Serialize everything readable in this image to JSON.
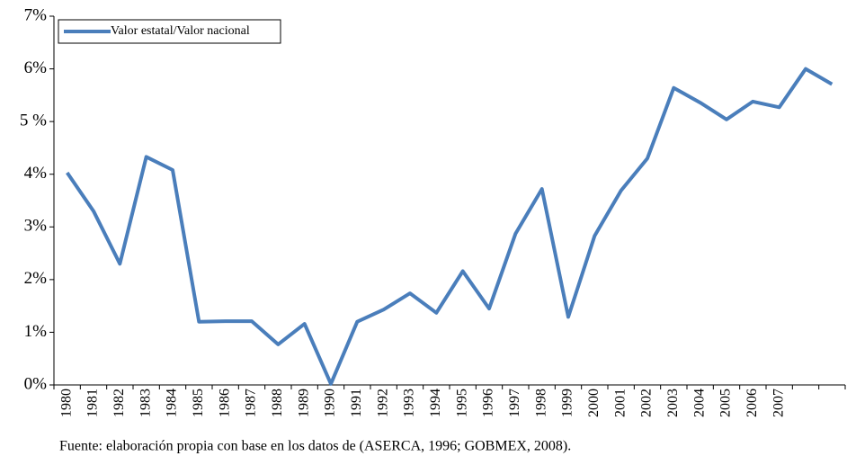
{
  "chart_data": {
    "type": "line",
    "categories": [
      "1980",
      "1981",
      "1982",
      "1983",
      "1984",
      "1985",
      "1986",
      "1987",
      "1988",
      "1989",
      "1990",
      "1991",
      "1992",
      "1993",
      "1994",
      "1995",
      "1996",
      "1997",
      "1998",
      "1999",
      "2000",
      "2001",
      "2002",
      "2003",
      "2004",
      "2005",
      "2006",
      "2007",
      null,
      null
    ],
    "series": [
      {
        "name": "Valor estatal/Valor nacional",
        "color": "#4a7ebb",
        "values": [
          4.03,
          3.3,
          2.3,
          4.33,
          4.08,
          1.2,
          1.21,
          1.21,
          0.77,
          1.16,
          0.02,
          1.2,
          1.43,
          1.74,
          1.37,
          2.16,
          1.45,
          2.87,
          3.72,
          1.29,
          2.83,
          3.69,
          4.3,
          5.64,
          5.36,
          5.04,
          5.38,
          5.27,
          6.0,
          5.71
        ]
      }
    ],
    "ylim": [
      0,
      7
    ],
    "yticks": [
      {
        "value": 0,
        "label": "0%"
      },
      {
        "value": 1,
        "label": "1%"
      },
      {
        "value": 2,
        "label": "2%"
      },
      {
        "value": 3,
        "label": "3%"
      },
      {
        "value": 4,
        "label": "4%"
      },
      {
        "value": 5,
        "label": "5 %"
      },
      {
        "value": 6,
        "label": "6%"
      },
      {
        "value": 7,
        "label": "7%"
      }
    ],
    "grid": false,
    "legend": "top-left",
    "source": "Fuente: elaboración propia con base en los datos de (ASERCA, 1996; GOBMEX, 2008)."
  }
}
